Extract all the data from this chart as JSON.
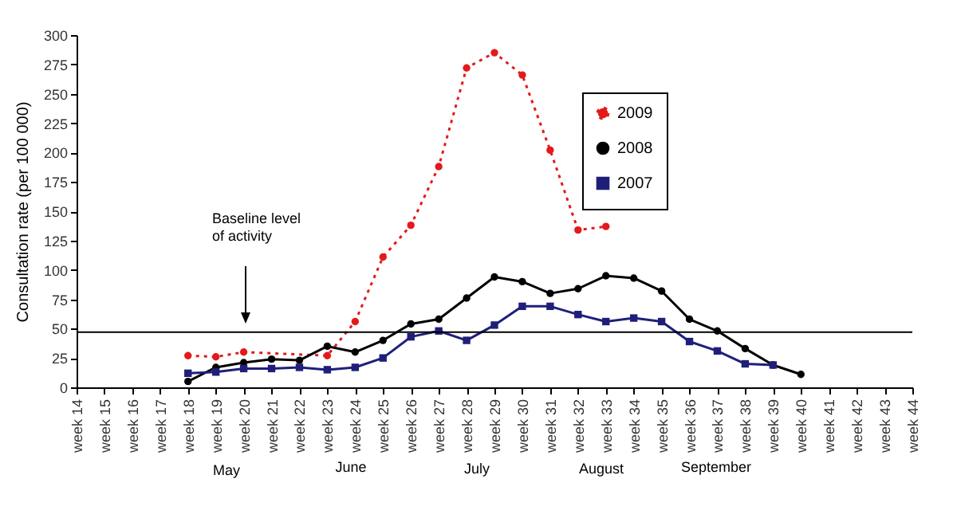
{
  "chart_data": {
    "type": "line",
    "ylabel": "Consultation rate (per 100 000)",
    "categories": [
      "week 14",
      "week 15",
      "week 16",
      "week 17",
      "week 18",
      "week 19",
      "week 20",
      "week 21",
      "week 22",
      "week 23",
      "week 24",
      "week 25",
      "week 26",
      "week 27",
      "week 28",
      "week 29",
      "week 30",
      "week 31",
      "week 32",
      "week 33",
      "week 34",
      "week 35",
      "week 36",
      "week 37",
      "week 38",
      "week 39",
      "week 40",
      "week 41",
      "week 42",
      "week 43",
      "week 44"
    ],
    "series": [
      {
        "name": "2009",
        "color": "#e31a1c",
        "marker": "circle",
        "line_style": "dotted",
        "values": [
          null,
          null,
          null,
          null,
          27,
          26,
          30,
          null,
          null,
          27,
          56,
          111,
          138,
          188,
          272,
          285,
          266,
          202,
          134,
          137,
          null,
          null,
          null,
          null,
          null,
          null,
          null,
          null,
          null,
          null,
          null
        ]
      },
      {
        "name": "2008",
        "color": "#000000",
        "marker": "circle",
        "line_style": "solid",
        "values": [
          null,
          null,
          null,
          null,
          5,
          17,
          21,
          24,
          23,
          35,
          30,
          40,
          54,
          58,
          76,
          94,
          90,
          80,
          84,
          95,
          93,
          82,
          58,
          48,
          33,
          19,
          11,
          null,
          null,
          null,
          null
        ]
      },
      {
        "name": "2007",
        "color": "#1f1f7a",
        "marker": "square",
        "line_style": "solid",
        "values": [
          null,
          null,
          null,
          null,
          12,
          13,
          16,
          16,
          17,
          15,
          17,
          25,
          43,
          48,
          40,
          53,
          69,
          69,
          62,
          56,
          59,
          56,
          39,
          31,
          20,
          19,
          null,
          null,
          null,
          null,
          null
        ]
      }
    ],
    "ylim": [
      0,
      300
    ],
    "yticks": [
      0,
      25,
      50,
      75,
      100,
      125,
      150,
      175,
      200,
      225,
      250,
      275,
      300
    ],
    "ref_lines": [
      {
        "axis": "y",
        "value": 47,
        "color": "#000000"
      }
    ],
    "annotations": [
      "Baseline level\nof activity",
      "May",
      "June",
      "July",
      "August",
      "September"
    ],
    "legend": "top right",
    "grid": false
  }
}
